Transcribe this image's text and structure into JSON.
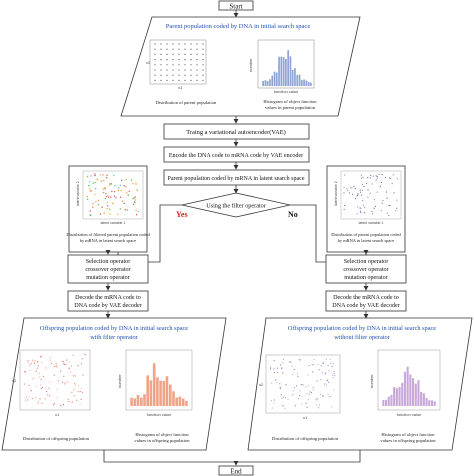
{
  "start": "Start",
  "end": "End",
  "top_panel": {
    "title": "Parent population coded by DNA in initial search space",
    "caption_left": "Distribution of parent population",
    "caption_right_1": "Histogram of object function",
    "caption_right_2": "values in parent population",
    "scatter_ylabel": "x2",
    "scatter_xlabel": "x1",
    "hist_ylabel": "number",
    "hist_xlabel": "function value"
  },
  "steps": {
    "train_vae": "Traing a variational autoencoder(VAE)",
    "encode": "Encode the DNA code to mRNA code by VAE encoder",
    "latent_pop": "Parent population coded by mRNA in latent search space",
    "filter_q": "Using the filter operator",
    "yes": "Yes",
    "no": "No"
  },
  "left_latent": {
    "caption_1": "Distribution of filtered parent population coded",
    "caption_2": "by mRNA in latent search space",
    "ylabel": "latent variable 2",
    "xlabel": "latent variable 1"
  },
  "right_latent": {
    "caption_1": "Distribution of parent population coded",
    "caption_2": "by mRNA in latent search space",
    "ylabel": "latent variable 2",
    "xlabel": "latent variable 1"
  },
  "operators": {
    "line1": "Selection operator",
    "line2": "crossover operator",
    "line3": "mutation operator"
  },
  "decode": {
    "line1": "Decode the mRNA code to",
    "line2": "DNA code by VAE decoder"
  },
  "bottom_left": {
    "title_1": "Offspring population coded by DNA in initial search space",
    "title_2": "with filter operator",
    "caption_left": "Distribution of offspring population",
    "caption_right_1": "Histogram of object function",
    "caption_right_2": "values in offspring population",
    "scatter_ylabel": "x2",
    "scatter_xlabel": "x1",
    "hist_ylabel": "number",
    "hist_xlabel": "function value"
  },
  "bottom_right": {
    "title_1": "Offspring population coded by DNA in initial search space",
    "title_2": "without filter operator",
    "caption_left": "Distribution of offspring population",
    "caption_right_1": "Histogram of object function",
    "caption_right_2": "values in offspring population",
    "scatter_ylabel": "x2",
    "scatter_xlabel": "x1",
    "hist_ylabel": "number",
    "hist_xlabel": "function value"
  },
  "colors": {
    "title_blue": "#1f4fb0",
    "yes_red": "#cc1f1f",
    "hist_blue": "#8fa3d6",
    "hist_orange": "#f0a487",
    "hist_purple": "#c9a7dc",
    "dot_dark": "#555555"
  }
}
